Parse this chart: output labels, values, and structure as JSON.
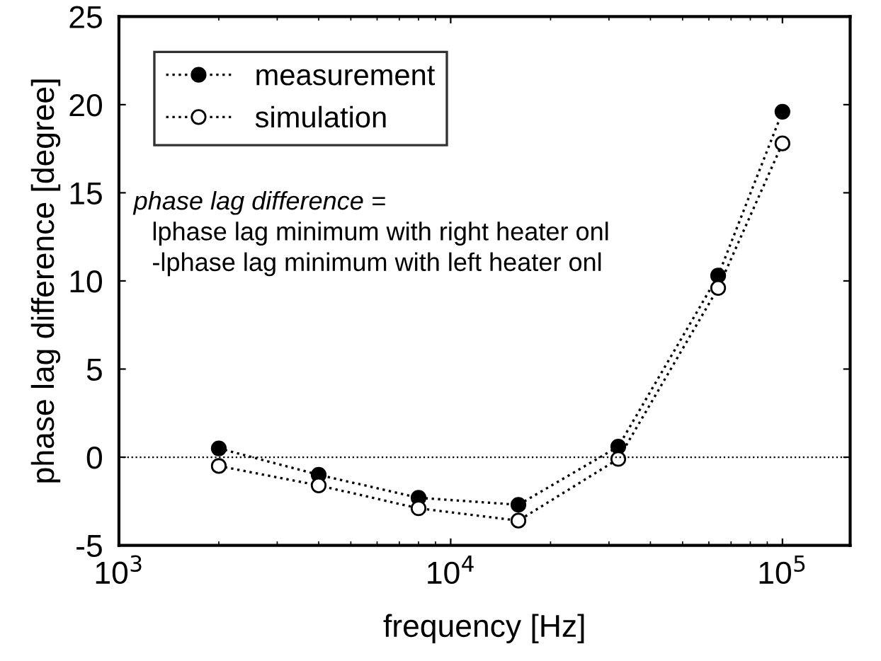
{
  "chart_data": {
    "type": "line",
    "xlabel": "frequency [Hz]",
    "ylabel": "phase lag difference [degree]",
    "log": "x",
    "xlim": [
      1000,
      160000
    ],
    "xticks": [
      {
        "value": 1000,
        "label": "10$^{3}$"
      },
      {
        "value": 10000,
        "label": "10$^{4}$"
      },
      {
        "value": 100000,
        "label": "10$^{5}$"
      }
    ],
    "ylim": [
      -5,
      25
    ],
    "yticks": [
      -5,
      0,
      5,
      10,
      15,
      20,
      25
    ],
    "x": [
      2000,
      4000,
      8000,
      16000,
      32000,
      64000,
      100000
    ],
    "series": [
      {
        "name": "measurement",
        "color": "#000000",
        "marker": "circle",
        "values": [
          0.5,
          -1.0,
          -2.3,
          -2.7,
          0.6,
          10.3,
          19.6
        ]
      },
      {
        "name": "simulation",
        "color": "#000000",
        "marker": "circle",
        "values": [
          -0.5,
          -1.6,
          -2.9,
          -3.6,
          -0.1,
          9.6,
          17.8
        ]
      }
    ],
    "line_style": "dotted",
    "grid": false,
    "legend": "top left",
    "ref_lines": [
      {
        "axis": "y",
        "value": 0,
        "line_style": "dotted",
        "color": "#000000"
      }
    ],
    "annotations": [
      "phase lag difference =",
      "lphase lag minimum with right heater onl",
      "-lphase lag minimum with left heater onl"
    ]
  }
}
